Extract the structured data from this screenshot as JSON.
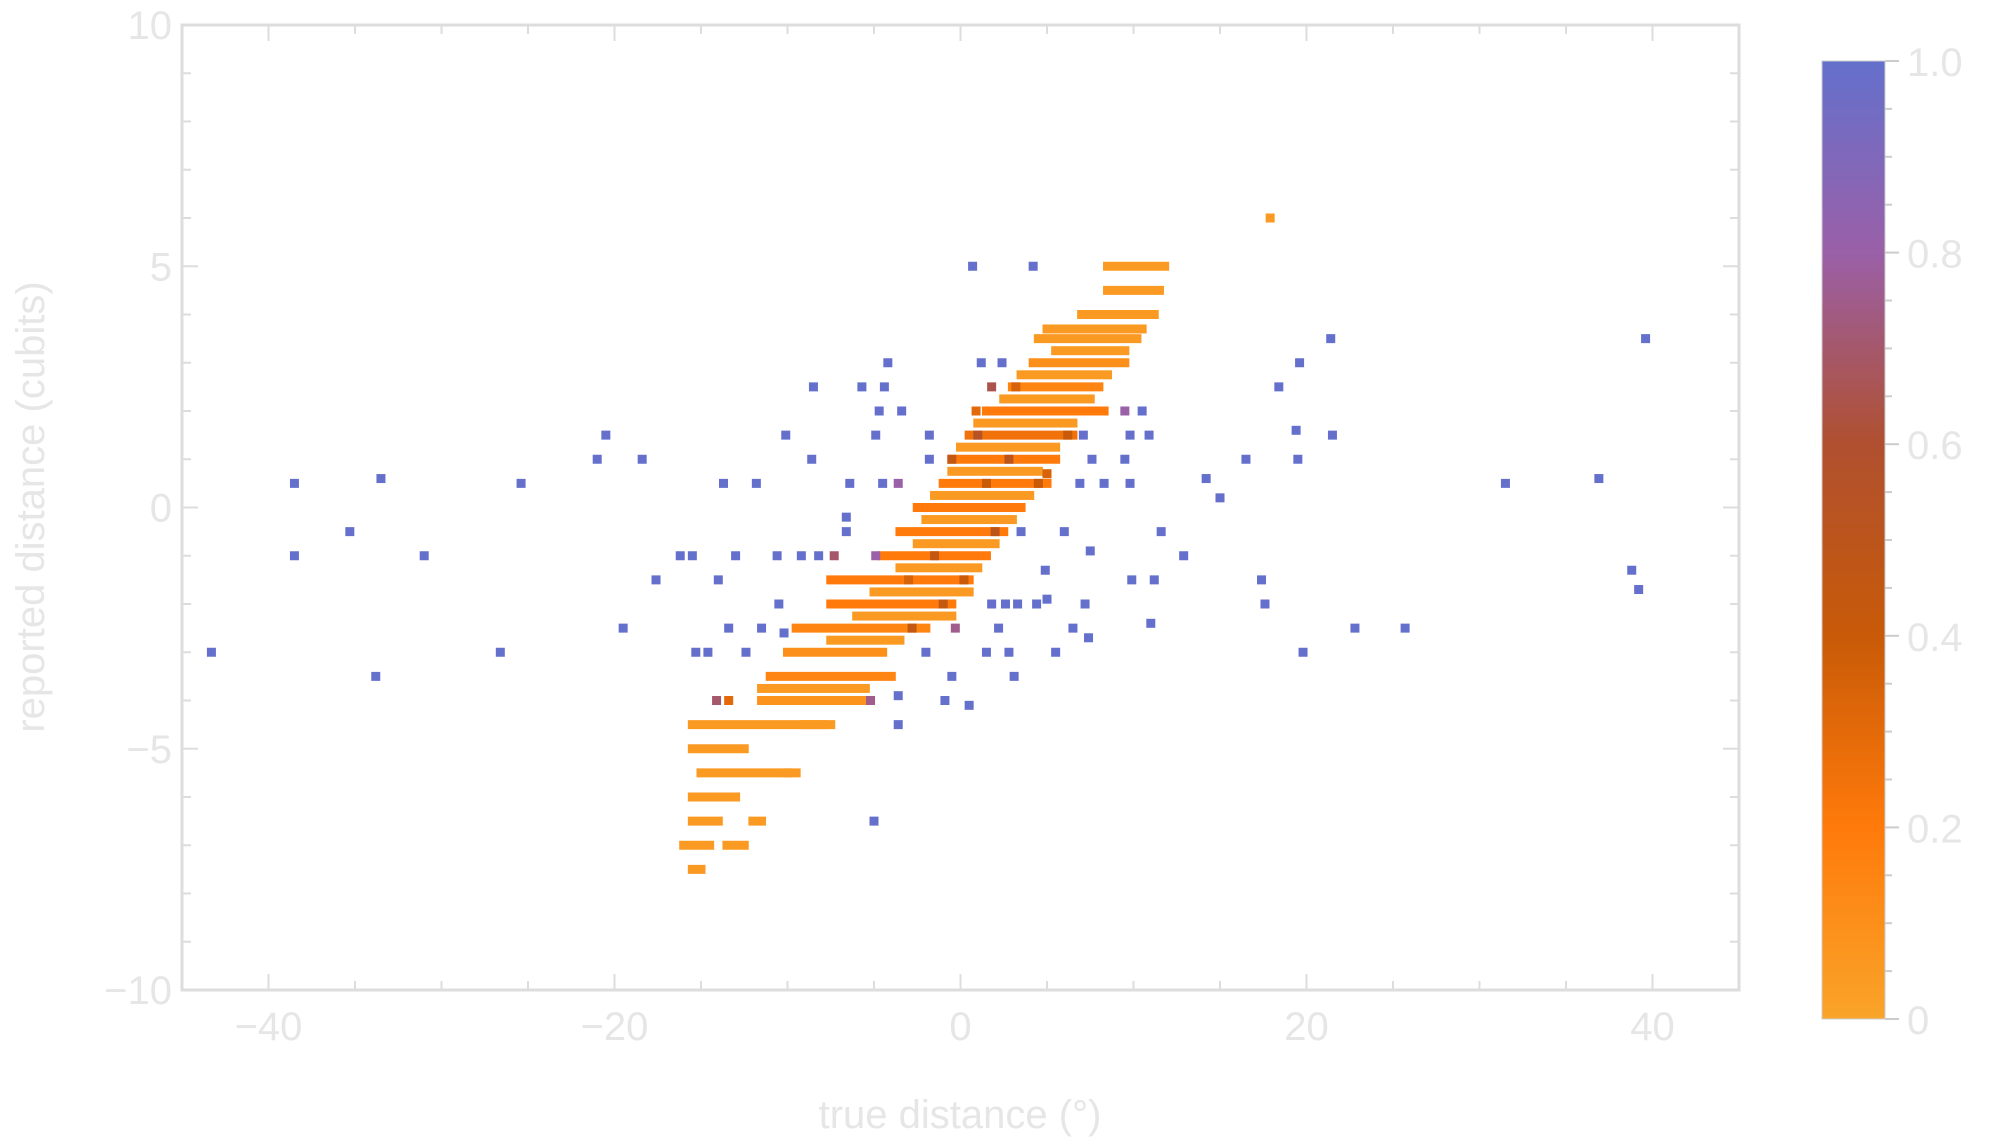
{
  "chart_data": {
    "type": "scatter",
    "xlabel": "true distance (°)",
    "ylabel": "reported distance (cubits)",
    "xlim": [
      -45,
      45
    ],
    "ylim": [
      -10,
      10
    ],
    "x_ticks": [
      -40,
      -20,
      0,
      20,
      40
    ],
    "x_tick_labels": [
      "−40",
      "−20",
      "0",
      "20",
      "40"
    ],
    "y_ticks": [
      -10,
      -5,
      0,
      5,
      10
    ],
    "y_tick_labels": [
      "−10",
      "−5",
      "0",
      "5",
      "10"
    ],
    "grid": false,
    "colorbar": {
      "range": [
        0,
        1
      ],
      "ticks": [
        0,
        0.2,
        0.4,
        0.6,
        0.8,
        1.0
      ],
      "tick_labels": [
        "0",
        "0.2",
        "0.4",
        "0.6",
        "0.8",
        "1.0"
      ],
      "colors": [
        "#F9A42A",
        "#FF7A0A",
        "#C85A08",
        "#B05030",
        "#9A60A8",
        "#6470CC"
      ]
    },
    "points": [
      {
        "x": 17.9,
        "y": 6.0,
        "c": 0.05
      },
      {
        "x": 0.7,
        "y": 5.0,
        "c": 1.0
      },
      {
        "x": 4.2,
        "y": 5.0,
        "c": 1.0
      },
      {
        "x": 21.4,
        "y": 3.5,
        "c": 1.0
      },
      {
        "x": 39.6,
        "y": 3.5,
        "c": 1.0
      },
      {
        "x": -4.2,
        "y": 3.0,
        "c": 1.0
      },
      {
        "x": 1.2,
        "y": 3.0,
        "c": 1.0
      },
      {
        "x": 2.4,
        "y": 3.0,
        "c": 1.0
      },
      {
        "x": 19.6,
        "y": 3.0,
        "c": 1.0
      },
      {
        "x": -8.5,
        "y": 2.5,
        "c": 1.0
      },
      {
        "x": -5.7,
        "y": 2.5,
        "c": 1.0
      },
      {
        "x": -4.4,
        "y": 2.5,
        "c": 1.0
      },
      {
        "x": 1.8,
        "y": 2.5,
        "c": 0.65
      },
      {
        "x": 18.4,
        "y": 2.5,
        "c": 1.0
      },
      {
        "x": -4.7,
        "y": 2.0,
        "c": 1.0
      },
      {
        "x": -3.4,
        "y": 2.0,
        "c": 1.0
      },
      {
        "x": 9.5,
        "y": 2.0,
        "c": 0.8
      },
      {
        "x": 10.5,
        "y": 2.0,
        "c": 1.0
      },
      {
        "x": -20.5,
        "y": 1.5,
        "c": 1.0
      },
      {
        "x": -10.1,
        "y": 1.5,
        "c": 1.0
      },
      {
        "x": -4.9,
        "y": 1.5,
        "c": 1.0
      },
      {
        "x": -1.8,
        "y": 1.5,
        "c": 1.0
      },
      {
        "x": 7.1,
        "y": 1.5,
        "c": 1.0
      },
      {
        "x": 9.8,
        "y": 1.5,
        "c": 1.0
      },
      {
        "x": 10.9,
        "y": 1.5,
        "c": 1.0
      },
      {
        "x": 19.4,
        "y": 1.6,
        "c": 1.0
      },
      {
        "x": 21.5,
        "y": 1.5,
        "c": 1.0
      },
      {
        "x": -21.0,
        "y": 1.0,
        "c": 1.0
      },
      {
        "x": -18.4,
        "y": 1.0,
        "c": 1.0
      },
      {
        "x": -8.6,
        "y": 1.0,
        "c": 1.0
      },
      {
        "x": -1.8,
        "y": 1.0,
        "c": 1.0
      },
      {
        "x": 7.6,
        "y": 1.0,
        "c": 1.0
      },
      {
        "x": 9.5,
        "y": 1.0,
        "c": 1.0
      },
      {
        "x": 16.5,
        "y": 1.0,
        "c": 1.0
      },
      {
        "x": 19.5,
        "y": 1.0,
        "c": 1.0
      },
      {
        "x": 14.2,
        "y": 0.6,
        "c": 1.0
      },
      {
        "x": -38.5,
        "y": 0.5,
        "c": 1.0
      },
      {
        "x": -33.5,
        "y": 0.6,
        "c": 1.0
      },
      {
        "x": -25.4,
        "y": 0.5,
        "c": 1.0
      },
      {
        "x": -13.7,
        "y": 0.5,
        "c": 1.0
      },
      {
        "x": -11.8,
        "y": 0.5,
        "c": 1.0
      },
      {
        "x": -6.4,
        "y": 0.5,
        "c": 1.0
      },
      {
        "x": -4.5,
        "y": 0.5,
        "c": 1.0
      },
      {
        "x": -3.6,
        "y": 0.5,
        "c": 0.8
      },
      {
        "x": 6.9,
        "y": 0.5,
        "c": 1.0
      },
      {
        "x": 8.3,
        "y": 0.5,
        "c": 1.0
      },
      {
        "x": 9.8,
        "y": 0.5,
        "c": 1.0
      },
      {
        "x": 31.5,
        "y": 0.5,
        "c": 1.0
      },
      {
        "x": 36.9,
        "y": 0.6,
        "c": 1.0
      },
      {
        "x": 15.0,
        "y": 0.2,
        "c": 1.0
      },
      {
        "x": -35.3,
        "y": -0.5,
        "c": 1.0
      },
      {
        "x": -6.6,
        "y": -0.2,
        "c": 1.0
      },
      {
        "x": -9.2,
        "y": -1.0,
        "c": 1.0
      },
      {
        "x": -6.6,
        "y": -0.5,
        "c": 1.0
      },
      {
        "x": 3.5,
        "y": -0.5,
        "c": 1.0
      },
      {
        "x": 6.0,
        "y": -0.5,
        "c": 1.0
      },
      {
        "x": 11.6,
        "y": -0.5,
        "c": 1.0
      },
      {
        "x": -38.5,
        "y": -1.0,
        "c": 1.0
      },
      {
        "x": -31.0,
        "y": -1.0,
        "c": 1.0
      },
      {
        "x": -16.2,
        "y": -1.0,
        "c": 1.0
      },
      {
        "x": -15.5,
        "y": -1.0,
        "c": 1.0
      },
      {
        "x": -13.0,
        "y": -1.0,
        "c": 1.0
      },
      {
        "x": -10.6,
        "y": -1.0,
        "c": 1.0
      },
      {
        "x": -8.2,
        "y": -1.0,
        "c": 1.0
      },
      {
        "x": -7.3,
        "y": -1.0,
        "c": 0.7
      },
      {
        "x": 7.5,
        "y": -0.9,
        "c": 1.0
      },
      {
        "x": 12.9,
        "y": -1.0,
        "c": 1.0
      },
      {
        "x": -17.6,
        "y": -1.5,
        "c": 1.0
      },
      {
        "x": 4.9,
        "y": -1.3,
        "c": 1.0
      },
      {
        "x": 9.9,
        "y": -1.5,
        "c": 1.0
      },
      {
        "x": 11.2,
        "y": -1.5,
        "c": 1.0
      },
      {
        "x": 17.4,
        "y": -1.5,
        "c": 1.0
      },
      {
        "x": 38.8,
        "y": -1.3,
        "c": 1.0
      },
      {
        "x": 39.2,
        "y": -1.7,
        "c": 1.0
      },
      {
        "x": -14.0,
        "y": -1.5,
        "c": 1.0
      },
      {
        "x": -10.5,
        "y": -2.0,
        "c": 1.0
      },
      {
        "x": 1.8,
        "y": -2.0,
        "c": 1.0
      },
      {
        "x": 2.6,
        "y": -2.0,
        "c": 1.0
      },
      {
        "x": 3.3,
        "y": -2.0,
        "c": 1.0
      },
      {
        "x": 4.4,
        "y": -2.0,
        "c": 1.0
      },
      {
        "x": 5.0,
        "y": -1.9,
        "c": 1.0
      },
      {
        "x": 7.2,
        "y": -2.0,
        "c": 1.0
      },
      {
        "x": 17.6,
        "y": -2.0,
        "c": 1.0
      },
      {
        "x": 11.0,
        "y": -2.4,
        "c": 1.0
      },
      {
        "x": -19.5,
        "y": -2.5,
        "c": 1.0
      },
      {
        "x": -13.4,
        "y": -2.5,
        "c": 1.0
      },
      {
        "x": -11.5,
        "y": -2.5,
        "c": 1.0
      },
      {
        "x": -10.2,
        "y": -2.6,
        "c": 1.0
      },
      {
        "x": -0.3,
        "y": -2.5,
        "c": 0.75
      },
      {
        "x": 2.2,
        "y": -2.5,
        "c": 1.0
      },
      {
        "x": 6.5,
        "y": -2.5,
        "c": 1.0
      },
      {
        "x": 7.4,
        "y": -2.7,
        "c": 1.0
      },
      {
        "x": 22.8,
        "y": -2.5,
        "c": 1.0
      },
      {
        "x": 25.7,
        "y": -2.5,
        "c": 1.0
      },
      {
        "x": -43.3,
        "y": -3.0,
        "c": 1.0
      },
      {
        "x": -26.6,
        "y": -3.0,
        "c": 1.0
      },
      {
        "x": -15.3,
        "y": -3.0,
        "c": 1.0
      },
      {
        "x": -14.6,
        "y": -3.0,
        "c": 1.0
      },
      {
        "x": -12.4,
        "y": -3.0,
        "c": 1.0
      },
      {
        "x": -2.0,
        "y": -3.0,
        "c": 1.0
      },
      {
        "x": 1.5,
        "y": -3.0,
        "c": 1.0
      },
      {
        "x": 2.8,
        "y": -3.0,
        "c": 1.0
      },
      {
        "x": 5.5,
        "y": -3.0,
        "c": 1.0
      },
      {
        "x": 19.8,
        "y": -3.0,
        "c": 1.0
      },
      {
        "x": -33.8,
        "y": -3.5,
        "c": 1.0
      },
      {
        "x": -0.5,
        "y": -3.5,
        "c": 1.0
      },
      {
        "x": 3.1,
        "y": -3.5,
        "c": 1.0
      },
      {
        "x": -3.6,
        "y": -3.9,
        "c": 1.0
      },
      {
        "x": -0.9,
        "y": -4.0,
        "c": 1.0
      },
      {
        "x": 0.5,
        "y": -4.1,
        "c": 1.0
      },
      {
        "x": -3.6,
        "y": -4.5,
        "c": 1.0
      },
      {
        "x": -5.0,
        "y": -6.5,
        "c": 1.0
      },
      {
        "x": -14.1,
        "y": -4.0,
        "c": 0.7
      },
      {
        "x": -13.4,
        "y": -4.0,
        "c": 0.3
      },
      {
        "x": -5.2,
        "y": -4.0,
        "c": 0.75
      },
      {
        "x": 0.9,
        "y": 2.0,
        "c": 0.3
      },
      {
        "x": 2.8,
        "y": 1.0,
        "c": 0.5
      },
      {
        "x": -0.5,
        "y": 1.0,
        "c": 0.45
      },
      {
        "x": 1.5,
        "y": 0.5,
        "c": 0.4
      },
      {
        "x": 5.0,
        "y": 0.7,
        "c": 0.35
      },
      {
        "x": 2.0,
        "y": -0.5,
        "c": 0.5
      },
      {
        "x": -1.5,
        "y": -1.0,
        "c": 0.45
      },
      {
        "x": 0.2,
        "y": -1.5,
        "c": 0.4
      },
      {
        "x": -4.9,
        "y": -1.0,
        "c": 0.8
      },
      {
        "x": -1.0,
        "y": -2.0,
        "c": 0.45
      },
      {
        "x": -2.8,
        "y": -2.5,
        "c": 0.45
      },
      {
        "x": 4.5,
        "y": 0.5,
        "c": 0.4
      },
      {
        "x": 6.2,
        "y": 1.5,
        "c": 0.4
      },
      {
        "x": -3.0,
        "y": -1.5,
        "c": 0.35
      },
      {
        "x": 1.0,
        "y": 1.5,
        "c": 0.55
      },
      {
        "x": 3.2,
        "y": 2.5,
        "c": 0.35
      }
    ],
    "segments": [
      {
        "x1": 8.5,
        "x2": 11.8,
        "y": 5.0,
        "c": 0.05
      },
      {
        "x1": 8.5,
        "x2": 11.5,
        "y": 4.5,
        "c": 0.05
      },
      {
        "x1": 7.0,
        "x2": 11.2,
        "y": 4.0,
        "c": 0.05
      },
      {
        "x1": 5.0,
        "x2": 10.5,
        "y": 3.7,
        "c": 0.05
      },
      {
        "x1": 4.5,
        "x2": 10.2,
        "y": 3.5,
        "c": 0.05
      },
      {
        "x1": 5.5,
        "x2": 9.5,
        "y": 3.25,
        "c": 0.05
      },
      {
        "x1": 4.2,
        "x2": 9.5,
        "y": 3.0,
        "c": 0.1
      },
      {
        "x1": 3.5,
        "x2": 8.5,
        "y": 2.75,
        "c": 0.05
      },
      {
        "x1": 3.0,
        "x2": 8.0,
        "y": 2.5,
        "c": 0.15
      },
      {
        "x1": 2.5,
        "x2": 7.5,
        "y": 2.25,
        "c": 0.05
      },
      {
        "x1": 1.5,
        "x2": 8.3,
        "y": 2.0,
        "c": 0.2
      },
      {
        "x1": 1.0,
        "x2": 6.5,
        "y": 1.75,
        "c": 0.05
      },
      {
        "x1": 0.5,
        "x2": 6.5,
        "y": 1.5,
        "c": 0.25
      },
      {
        "x1": 0.0,
        "x2": 5.5,
        "y": 1.25,
        "c": 0.05
      },
      {
        "x1": -0.5,
        "x2": 5.5,
        "y": 1.0,
        "c": 0.2
      },
      {
        "x1": -0.5,
        "x2": 4.5,
        "y": 0.75,
        "c": 0.05
      },
      {
        "x1": -1.0,
        "x2": 5.0,
        "y": 0.5,
        "c": 0.2
      },
      {
        "x1": -1.5,
        "x2": 4.0,
        "y": 0.25,
        "c": 0.05
      },
      {
        "x1": -2.5,
        "x2": 3.5,
        "y": 0.0,
        "c": 0.2
      },
      {
        "x1": -2.0,
        "x2": 3.0,
        "y": -0.25,
        "c": 0.05
      },
      {
        "x1": -3.5,
        "x2": 2.5,
        "y": -0.5,
        "c": 0.2
      },
      {
        "x1": -2.5,
        "x2": 2.0,
        "y": -0.75,
        "c": 0.05
      },
      {
        "x1": -4.5,
        "x2": 1.5,
        "y": -1.0,
        "c": 0.2
      },
      {
        "x1": -3.5,
        "x2": 1.0,
        "y": -1.25,
        "c": 0.05
      },
      {
        "x1": -7.5,
        "x2": 0.5,
        "y": -1.5,
        "c": 0.2
      },
      {
        "x1": -5.0,
        "x2": 0.5,
        "y": -1.75,
        "c": 0.05
      },
      {
        "x1": -7.5,
        "x2": -0.5,
        "y": -2.0,
        "c": 0.2
      },
      {
        "x1": -6.0,
        "x2": -0.5,
        "y": -2.25,
        "c": 0.05
      },
      {
        "x1": -9.5,
        "x2": -2.0,
        "y": -2.5,
        "c": 0.15
      },
      {
        "x1": -7.5,
        "x2": -3.5,
        "y": -2.75,
        "c": 0.05
      },
      {
        "x1": -10.0,
        "x2": -4.5,
        "y": -3.0,
        "c": 0.1
      },
      {
        "x1": -11.0,
        "x2": -4.0,
        "y": -3.5,
        "c": 0.15
      },
      {
        "x1": -11.5,
        "x2": -5.5,
        "y": -3.75,
        "c": 0.05
      },
      {
        "x1": -11.5,
        "x2": -5.5,
        "y": -4.0,
        "c": 0.08
      },
      {
        "x1": -15.5,
        "x2": -7.5,
        "y": -4.5,
        "c": 0.05
      },
      {
        "x1": -15.5,
        "x2": -12.5,
        "y": -5.0,
        "c": 0.05
      },
      {
        "x1": -15.0,
        "x2": -10.0,
        "y": -5.5,
        "c": 0.05
      },
      {
        "x1": -15.5,
        "x2": -13.0,
        "y": -6.0,
        "c": 0.05
      },
      {
        "x1": -15.5,
        "x2": -14.0,
        "y": -6.5,
        "c": 0.05
      },
      {
        "x1": -16.0,
        "x2": -14.5,
        "y": -7.0,
        "c": 0.05
      },
      {
        "x1": -13.5,
        "x2": -12.5,
        "y": -7.0,
        "c": 0.05
      },
      {
        "x1": -12.0,
        "x2": -11.5,
        "y": -6.5,
        "c": 0.05
      },
      {
        "x1": -10.0,
        "x2": -9.5,
        "y": -5.5,
        "c": 0.05
      },
      {
        "x1": -15.5,
        "x2": -15.0,
        "y": -7.5,
        "c": 0.05
      },
      {
        "x1": -9.0,
        "x2": -8.0,
        "y": -4.5,
        "c": 0.05
      }
    ]
  }
}
